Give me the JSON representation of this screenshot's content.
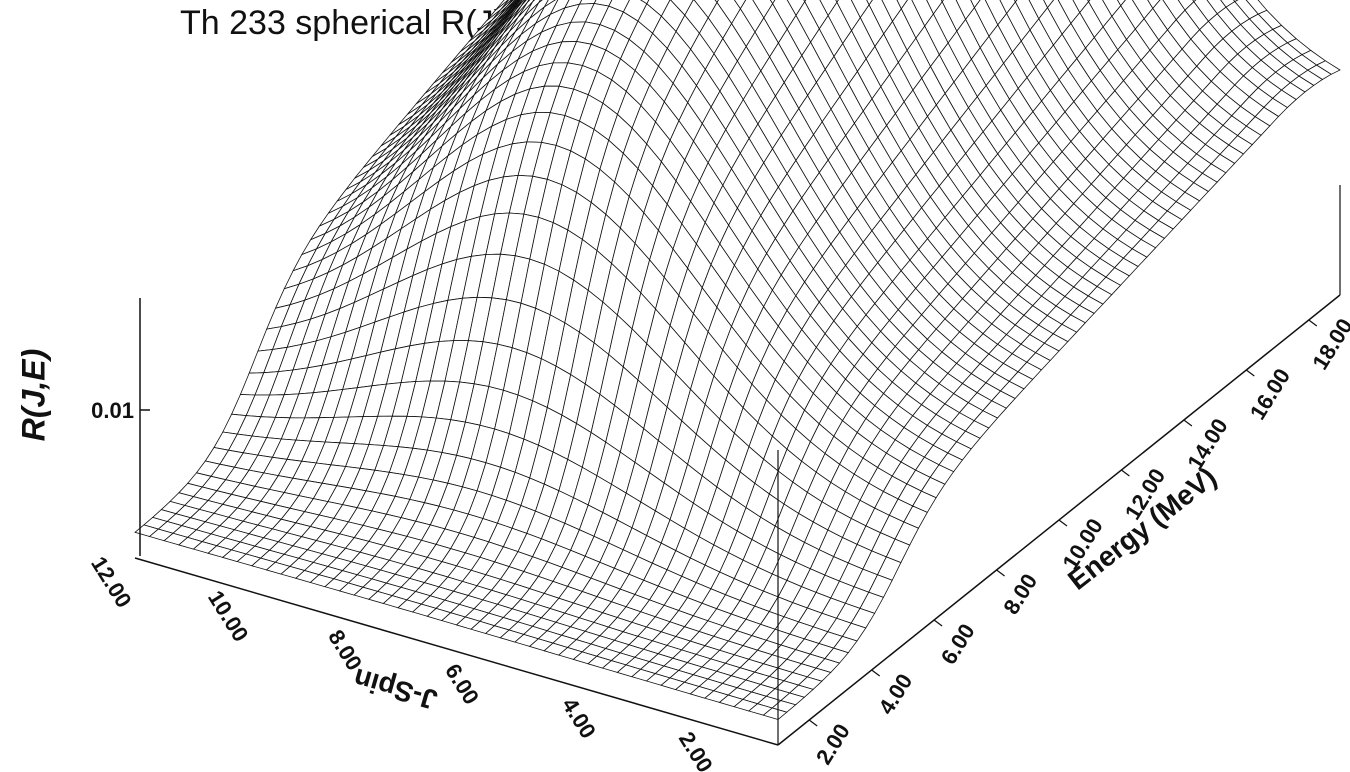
{
  "chart_data": {
    "type": "surface",
    "title": "Th 233 spherical R(J)",
    "xlabel": "J-Spin",
    "ylabel": "Energy (MeV)",
    "zlabel": "R(J,E)",
    "x_ticks": [
      "12.00",
      "10.00",
      "8.00",
      "6.00",
      "4.00",
      "2.00"
    ],
    "y_ticks": [
      "2.00",
      "4.00",
      "6.00",
      "8.00",
      "10.00",
      "12.00",
      "14.00",
      "16.00",
      "18.00"
    ],
    "z_ticks": [
      "0.01"
    ],
    "xlim": [
      1,
      12
    ],
    "ylim": [
      1,
      19
    ],
    "grid": false,
    "mesh_color": "#111111"
  }
}
